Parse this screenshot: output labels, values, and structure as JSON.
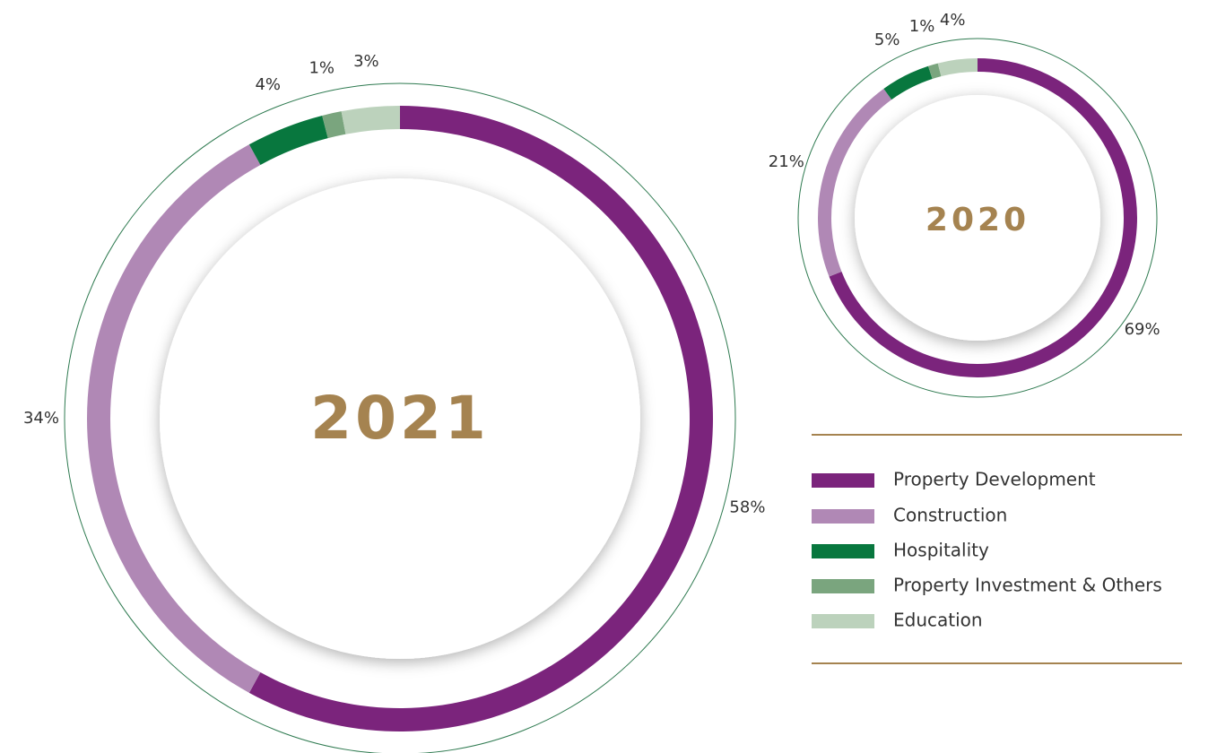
{
  "chart_data": [
    {
      "type": "pie",
      "title": "2021",
      "categories": [
        "Property Development",
        "Construction",
        "Hospitality",
        "Property Investment & Others",
        "Education"
      ],
      "colors": [
        "#7b247c",
        "#b088b5",
        "#08773e",
        "#7aa57e",
        "#bcd2bc"
      ],
      "values": [
        58,
        34,
        4,
        1,
        3
      ],
      "value_labels": [
        "58%",
        "34%",
        "4%",
        "1%",
        "3%"
      ]
    },
    {
      "type": "pie",
      "title": "2020",
      "values": [
        69,
        21,
        5,
        1,
        4
      ],
      "value_labels": [
        "69%",
        "21%",
        "5%",
        "1%",
        "4%"
      ]
    }
  ]
}
